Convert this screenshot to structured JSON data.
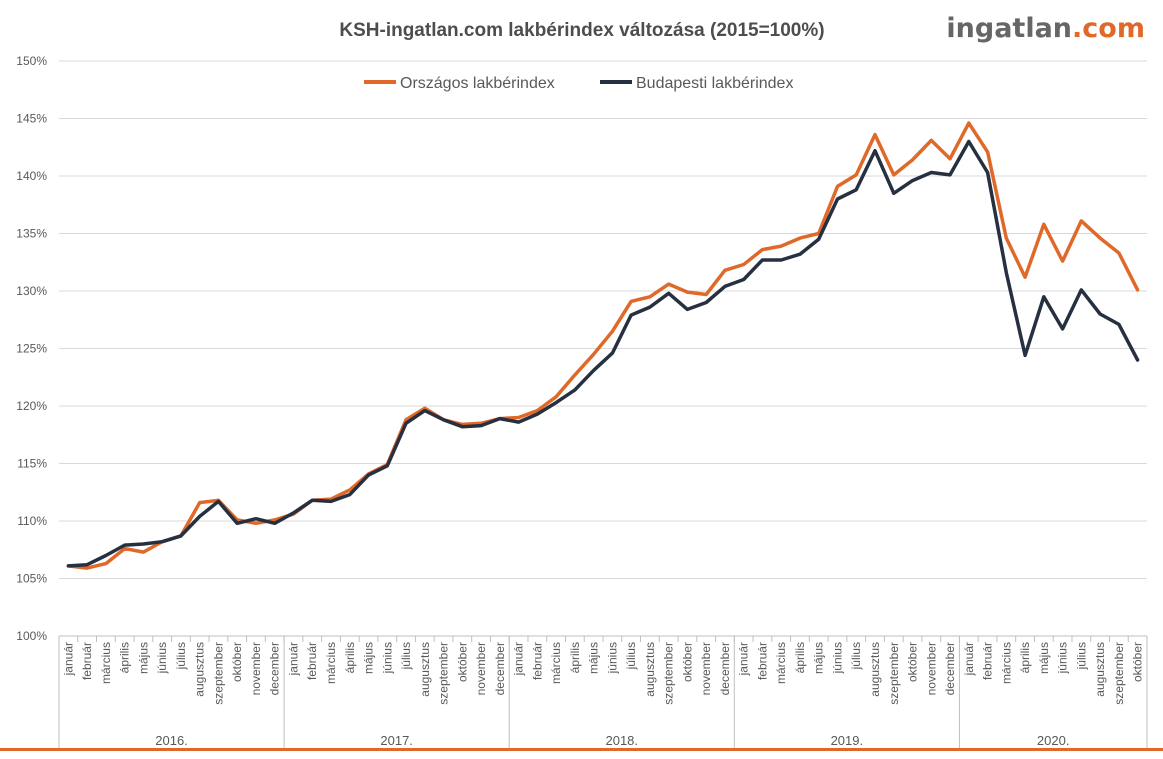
{
  "logo": {
    "part1": "ingatlan",
    "part2": ".com"
  },
  "chart_data": {
    "type": "line",
    "title": "KSH-ingatlan.com lakbérindex változása (2015=100%)",
    "xlabel": "",
    "ylabel": "",
    "ylim": [
      100,
      150
    ],
    "yticks": [
      "100%",
      "105%",
      "110%",
      "115%",
      "120%",
      "125%",
      "130%",
      "135%",
      "140%",
      "145%",
      "150%"
    ],
    "grid": true,
    "legend_position": "top-center",
    "categories": [
      "január",
      "február",
      "március",
      "április",
      "május",
      "június",
      "július",
      "augusztus",
      "szeptember",
      "október",
      "november",
      "december",
      "január",
      "február",
      "március",
      "április",
      "május",
      "június",
      "július",
      "augusztus",
      "szeptember",
      "október",
      "november",
      "december",
      "január",
      "február",
      "március",
      "április",
      "május",
      "június",
      "július",
      "augusztus",
      "szeptember",
      "október",
      "november",
      "december",
      "január",
      "február",
      "március",
      "április",
      "május",
      "június",
      "július",
      "augusztus",
      "szeptember",
      "október",
      "november",
      "december",
      "január",
      "február",
      "március",
      "április",
      "május",
      "június",
      "július",
      "augusztus",
      "szeptember",
      "október"
    ],
    "years": [
      {
        "label": "2016.",
        "count": 12
      },
      {
        "label": "2017.",
        "count": 12
      },
      {
        "label": "2018.",
        "count": 12
      },
      {
        "label": "2019.",
        "count": 12
      },
      {
        "label": "2020.",
        "count": 10
      }
    ],
    "series": [
      {
        "name": "Országos lakbérindex",
        "color": "#e0692a",
        "values": [
          106.1,
          105.9,
          106.3,
          107.6,
          107.3,
          108.2,
          108.7,
          111.6,
          111.8,
          110.1,
          109.8,
          110.1,
          110.6,
          111.8,
          111.9,
          112.7,
          114.1,
          114.9,
          118.8,
          119.8,
          118.8,
          118.4,
          118.5,
          118.9,
          119.0,
          119.6,
          120.8,
          122.7,
          124.5,
          126.5,
          129.1,
          129.5,
          130.6,
          129.9,
          129.7,
          131.8,
          132.3,
          133.6,
          133.9,
          134.6,
          135.0,
          139.1,
          140.1,
          143.6,
          140.1,
          141.4,
          143.1,
          141.5,
          144.6,
          142.1,
          134.6,
          131.2,
          135.8,
          132.6,
          136.1,
          134.6,
          133.3,
          130.1
        ]
      },
      {
        "name": "Budapesti lakbérindex",
        "color": "#263040",
        "values": [
          106.1,
          106.2,
          107.0,
          107.9,
          108.0,
          108.2,
          108.7,
          110.4,
          111.7,
          109.8,
          110.2,
          109.8,
          110.7,
          111.8,
          111.7,
          112.3,
          114.0,
          114.8,
          118.5,
          119.6,
          118.8,
          118.2,
          118.3,
          118.9,
          118.6,
          119.3,
          120.3,
          121.4,
          123.1,
          124.6,
          127.9,
          128.6,
          129.8,
          128.4,
          129.0,
          130.4,
          131.0,
          132.7,
          132.7,
          133.2,
          134.5,
          138.0,
          138.8,
          142.2,
          138.5,
          139.6,
          140.3,
          140.1,
          143.0,
          140.3,
          131.6,
          124.4,
          129.5,
          126.7,
          130.1,
          128.0,
          127.1,
          124.0
        ]
      }
    ]
  }
}
